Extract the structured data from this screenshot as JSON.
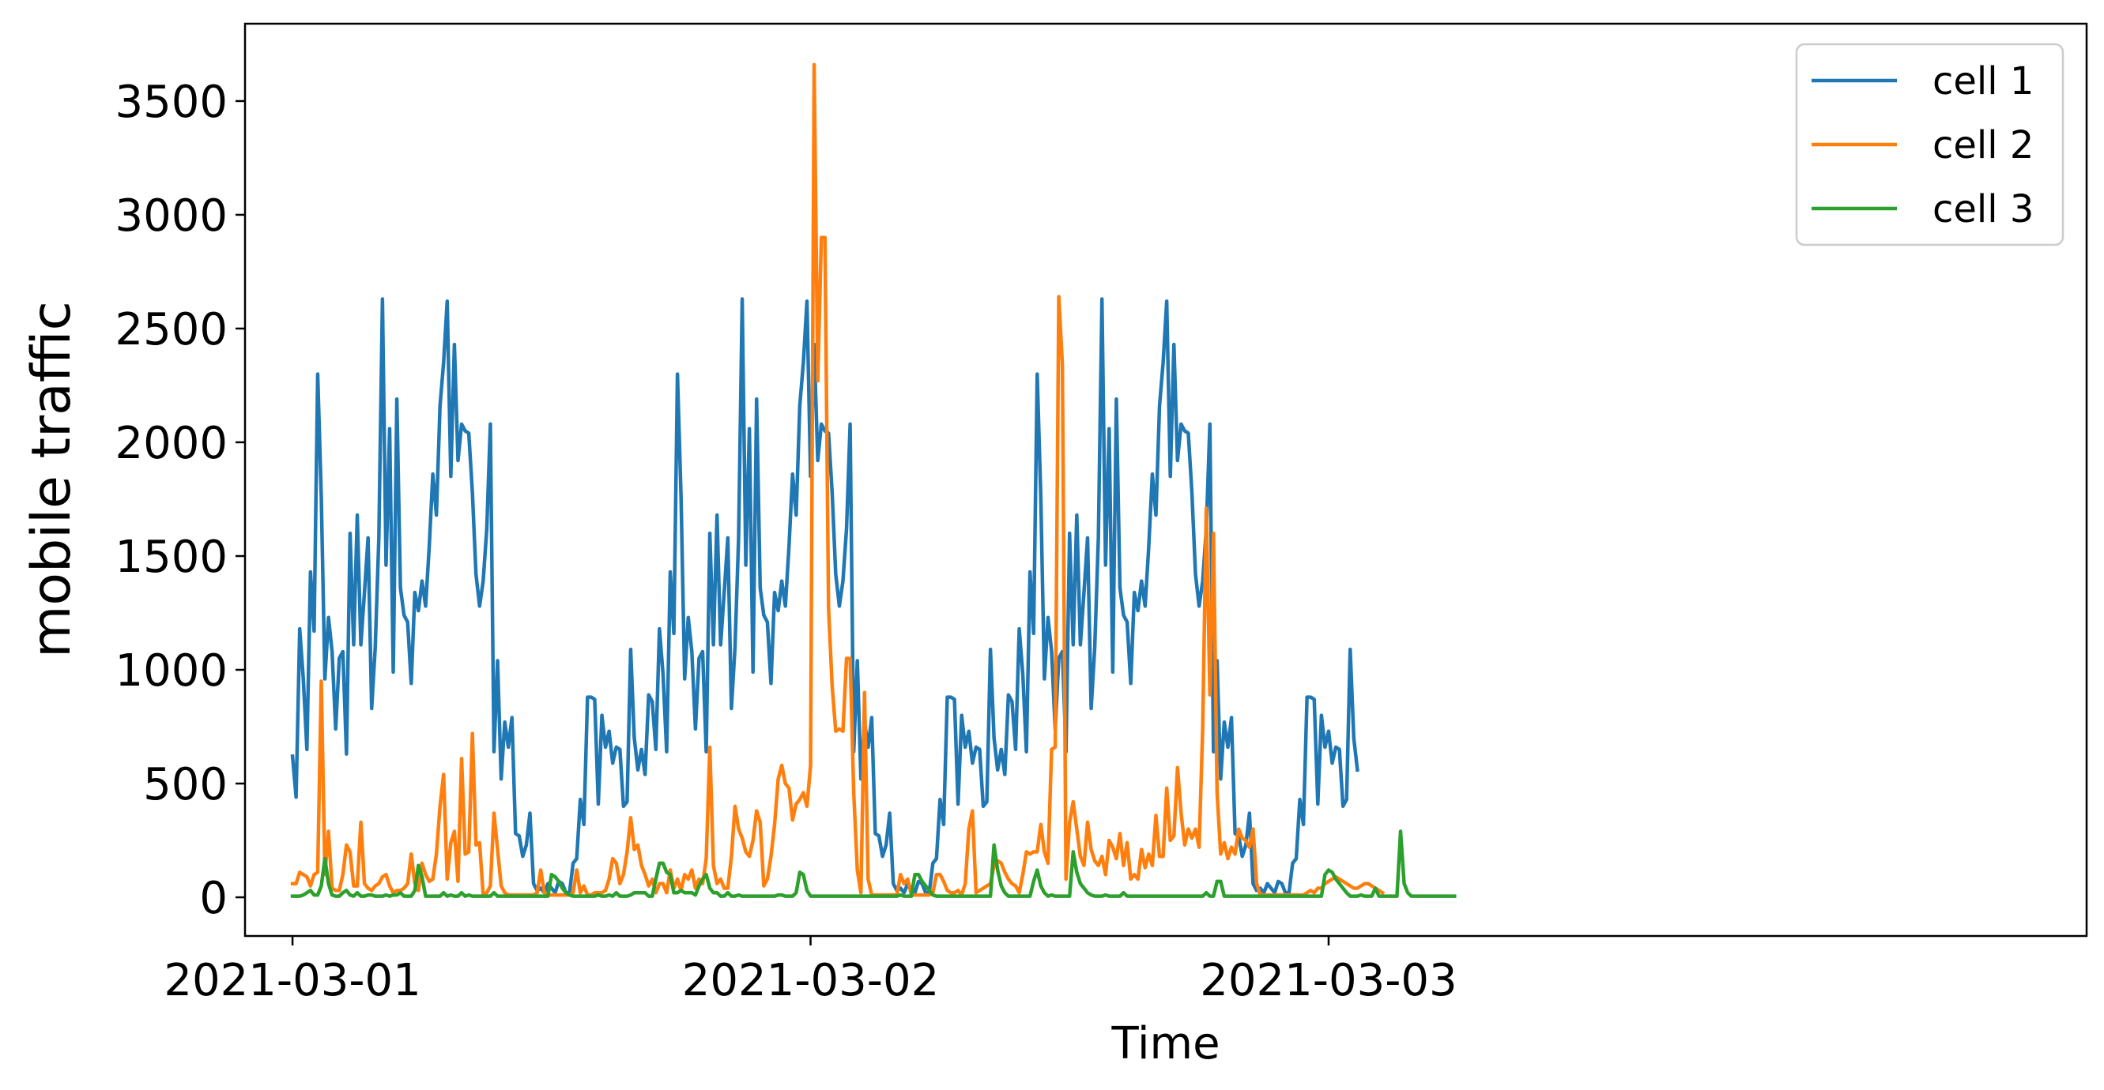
{
  "chart_data": {
    "type": "line",
    "xlabel": "Time",
    "ylabel": "mobile traffic",
    "x_start": "2021-03-01 00:00",
    "x_step_minutes": 10,
    "xlim": [
      "2021-02-28 21:48",
      "2021-03-04 11:07"
    ],
    "ylim": [
      -170,
      3840
    ],
    "x_ticks": [
      "2021-03-01",
      "2021-03-02",
      "2021-03-03"
    ],
    "y_ticks": [
      0,
      500,
      1000,
      1500,
      2000,
      2500,
      3000,
      3500
    ],
    "grid": false,
    "legend": {
      "position": "top-right"
    },
    "series": [
      {
        "name": "cell 1",
        "color": "#1f77b4",
        "values": [
          620,
          440,
          1180,
          960,
          650,
          1430,
          1170,
          2300,
          1760,
          960,
          1230,
          1080,
          740,
          1050,
          1080,
          630,
          1600,
          1110,
          1680,
          1110,
          1340,
          1580,
          830,
          1100,
          1580,
          2630,
          1460,
          2060,
          990,
          2190,
          1360,
          1240,
          1210,
          940,
          1340,
          1260,
          1390,
          1280,
          1540,
          1860,
          1680,
          2160,
          2350,
          2620,
          1850,
          2430,
          1920,
          2080,
          2050,
          2040,
          1780,
          1420,
          1280,
          1390,
          1620,
          2080,
          640,
          1040,
          520,
          770,
          660,
          790,
          280,
          270,
          180,
          230,
          370,
          60,
          30,
          40,
          20,
          60,
          40,
          20,
          70,
          60,
          20,
          20,
          150,
          170,
          430,
          320,
          880,
          880,
          870,
          410,
          800,
          660,
          730,
          590,
          660,
          650,
          400,
          420,
          1090,
          700,
          560,
          650,
          540,
          890,
          860,
          650,
          1180,
          980,
          640,
          1430,
          1160,
          2300,
          1760,
          960,
          1230,
          1080,
          740,
          1050,
          1080,
          640,
          1600,
          1110,
          1680,
          1110,
          1340,
          1580,
          830,
          1100,
          1580,
          2630,
          1460,
          2060,
          990,
          2190,
          1360,
          1240,
          1210,
          940,
          1340,
          1260,
          1390,
          1280,
          1540,
          1860,
          1680,
          2160,
          2350,
          2620,
          1850,
          2430,
          1920,
          2080,
          2050,
          2040,
          1780,
          1420,
          1280,
          1390,
          1620,
          2080,
          640,
          1040,
          520,
          770,
          660,
          790,
          280,
          270,
          180,
          230,
          370,
          60,
          30,
          40,
          20,
          60,
          40,
          20,
          70,
          60,
          20,
          20,
          150,
          170,
          430,
          320,
          880,
          880,
          870,
          410,
          800,
          660,
          730,
          590,
          660,
          650,
          400,
          420,
          1090,
          700,
          560,
          650,
          540,
          890,
          860,
          650,
          1180,
          980,
          640,
          1430,
          1160,
          2300,
          1760,
          960,
          1230,
          1080,
          740,
          1050,
          1080,
          640,
          1600,
          1110,
          1680,
          1110,
          1340,
          1580,
          830,
          1100,
          1580,
          2630,
          1460,
          2060,
          990,
          2190,
          1360,
          1240,
          1210,
          940,
          1340,
          1260,
          1390,
          1280,
          1540,
          1860,
          1680,
          2160,
          2350,
          2620,
          1850,
          2430,
          1920,
          2080,
          2050,
          2040,
          1780,
          1420,
          1280,
          1390,
          1620,
          2080,
          640,
          1040,
          520,
          770,
          660,
          790,
          280,
          270,
          180,
          230,
          370,
          60,
          30,
          40,
          20,
          60,
          40,
          20,
          70,
          60,
          20,
          20,
          150,
          170,
          430,
          320,
          880,
          880,
          870,
          410,
          800,
          660,
          730,
          590,
          660,
          650,
          400,
          430,
          1090,
          700,
          560
        ]
      },
      {
        "name": "cell 2",
        "color": "#ff7f0e",
        "values": [
          60,
          60,
          110,
          100,
          90,
          50,
          100,
          110,
          950,
          100,
          290,
          40,
          30,
          30,
          100,
          230,
          200,
          50,
          50,
          330,
          60,
          40,
          30,
          50,
          60,
          90,
          100,
          50,
          20,
          30,
          30,
          40,
          60,
          190,
          60,
          30,
          150,
          100,
          70,
          80,
          190,
          400,
          540,
          80,
          240,
          290,
          70,
          610,
          190,
          200,
          720,
          230,
          240,
          10,
          20,
          50,
          370,
          210,
          50,
          20,
          10,
          10,
          10,
          10,
          10,
          10,
          10,
          10,
          20,
          120,
          20,
          10,
          10,
          10,
          10,
          10,
          10,
          10,
          20,
          120,
          20,
          50,
          10,
          10,
          20,
          20,
          20,
          30,
          80,
          170,
          150,
          60,
          100,
          200,
          350,
          210,
          230,
          140,
          100,
          50,
          80,
          20,
          60,
          60,
          20,
          120,
          40,
          80,
          30,
          100,
          80,
          120,
          40,
          80,
          60,
          170,
          660,
          140,
          60,
          80,
          40,
          40,
          180,
          400,
          300,
          260,
          200,
          180,
          250,
          380,
          330,
          50,
          80,
          180,
          320,
          520,
          580,
          500,
          480,
          340,
          410,
          430,
          460,
          400,
          580,
          3660,
          2270,
          2900,
          2900,
          1270,
          930,
          730,
          740,
          730,
          1050,
          1050,
          460,
          120,
          20,
          900,
          80,
          10,
          10,
          10,
          10,
          10,
          10,
          10,
          10,
          100,
          60,
          80,
          10,
          10,
          10,
          10,
          10,
          10,
          20,
          100,
          100,
          70,
          30,
          20,
          20,
          30,
          10,
          60,
          300,
          380,
          20,
          30,
          40,
          50,
          60,
          140,
          160,
          150,
          110,
          80,
          60,
          50,
          20,
          100,
          200,
          190,
          200,
          200,
          320,
          200,
          150,
          650,
          660,
          2640,
          2340,
          80,
          330,
          420,
          300,
          180,
          140,
          330,
          210,
          160,
          140,
          180,
          100,
          250,
          220,
          170,
          280,
          140,
          240,
          80,
          100,
          80,
          210,
          130,
          190,
          140,
          360,
          180,
          180,
          480,
          250,
          270,
          570,
          370,
          230,
          300,
          260,
          300,
          220,
          740,
          1710,
          890,
          1600,
          460,
          190,
          240,
          170,
          220,
          190,
          300,
          260,
          250,
          220,
          300,
          60,
          10,
          10,
          10,
          10,
          10,
          10,
          10,
          10,
          10,
          10,
          10,
          10,
          10,
          20,
          30,
          20,
          40,
          40,
          60,
          70,
          80,
          90,
          80,
          70,
          60,
          50,
          40,
          40,
          50,
          60,
          60,
          50,
          40,
          30,
          20
        ]
      },
      {
        "name": "cell 3",
        "color": "#2ca02c",
        "values": [
          5,
          5,
          5,
          10,
          20,
          30,
          10,
          10,
          50,
          170,
          60,
          10,
          5,
          5,
          20,
          30,
          10,
          5,
          20,
          5,
          5,
          10,
          10,
          5,
          5,
          5,
          10,
          5,
          10,
          10,
          20,
          5,
          5,
          5,
          30,
          140,
          90,
          5,
          5,
          5,
          5,
          5,
          20,
          5,
          10,
          5,
          5,
          20,
          5,
          10,
          5,
          5,
          5,
          5,
          5,
          5,
          20,
          5,
          5,
          5,
          5,
          5,
          5,
          5,
          5,
          5,
          5,
          5,
          5,
          5,
          5,
          5,
          100,
          90,
          70,
          40,
          20,
          10,
          5,
          5,
          5,
          5,
          5,
          5,
          5,
          10,
          5,
          5,
          10,
          5,
          20,
          5,
          5,
          5,
          10,
          20,
          20,
          20,
          20,
          5,
          5,
          80,
          150,
          150,
          110,
          100,
          20,
          20,
          30,
          20,
          20,
          20,
          10,
          50,
          80,
          100,
          40,
          20,
          20,
          5,
          5,
          20,
          5,
          5,
          10,
          5,
          5,
          5,
          5,
          5,
          5,
          5,
          5,
          5,
          5,
          10,
          10,
          5,
          5,
          5,
          20,
          110,
          100,
          30,
          5,
          5,
          5,
          5,
          5,
          5,
          5,
          5,
          5,
          5,
          5,
          5,
          5,
          5,
          5,
          5,
          5,
          5,
          5,
          5,
          5,
          5,
          5,
          5,
          5,
          10,
          5,
          5,
          5,
          100,
          100,
          70,
          50,
          30,
          10,
          5,
          5,
          5,
          5,
          5,
          5,
          5,
          5,
          5,
          5,
          5,
          5,
          5,
          5,
          5,
          5,
          230,
          120,
          50,
          20,
          5,
          5,
          5,
          5,
          5,
          5,
          5,
          70,
          120,
          50,
          20,
          5,
          10,
          5,
          5,
          5,
          5,
          5,
          200,
          110,
          60,
          40,
          20,
          10,
          5,
          5,
          5,
          10,
          5,
          5,
          5,
          5,
          20,
          5,
          5,
          5,
          5,
          5,
          5,
          5,
          5,
          5,
          5,
          5,
          5,
          5,
          5,
          5,
          5,
          5,
          5,
          5,
          5,
          5,
          5,
          20,
          5,
          5,
          70,
          70,
          5,
          5,
          5,
          5,
          5,
          5,
          5,
          5,
          5,
          5,
          5,
          5,
          5,
          5,
          5,
          5,
          5,
          5,
          5,
          5,
          5,
          5,
          5,
          5,
          5,
          5,
          5,
          5,
          100,
          120,
          110,
          80,
          60,
          40,
          20,
          5,
          5,
          5,
          10,
          5,
          5,
          5,
          40,
          5,
          5,
          5,
          5,
          5,
          5,
          290,
          60,
          20,
          5,
          5,
          5,
          5,
          5,
          5,
          5,
          5,
          5,
          5,
          5,
          5,
          5
        ]
      }
    ]
  }
}
